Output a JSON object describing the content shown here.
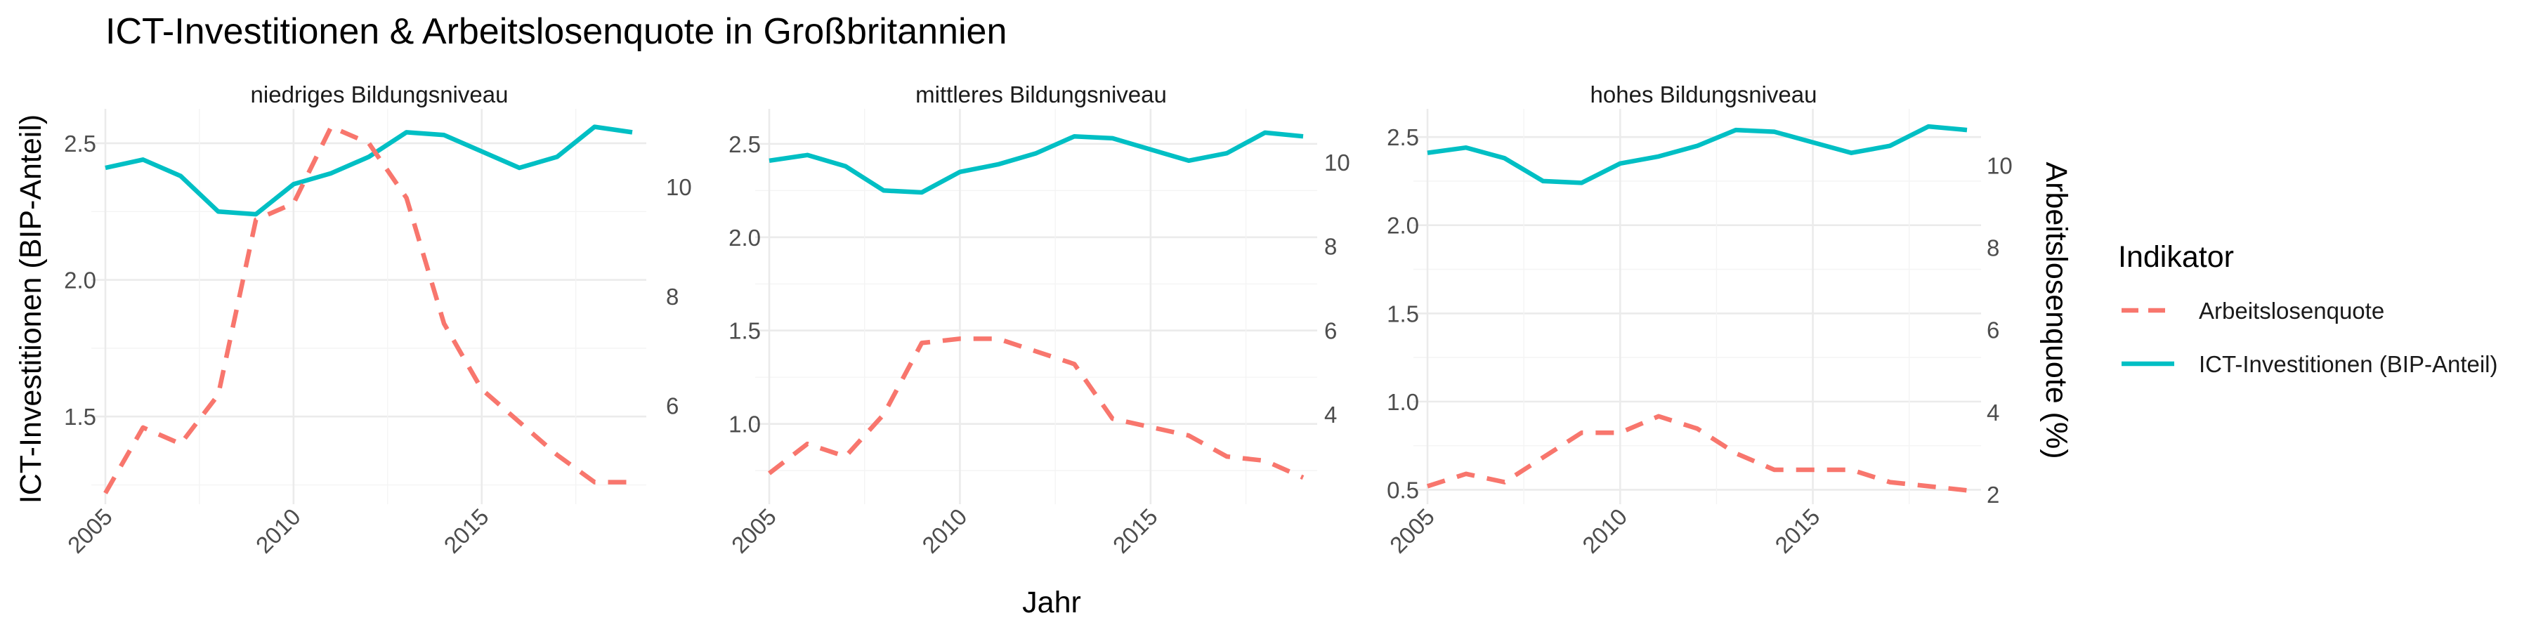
{
  "chart_data": {
    "type": "line",
    "title": "ICT-Investitionen & Arbeitslosenquote in Großbritannien",
    "xlabel": "Jahr",
    "ylabel_left": "ICT-Investitionen (BIP-Anteil)",
    "ylabel_right": "Arbeitslosenquote (%)",
    "legend": {
      "title": "Indikator",
      "placement": "right",
      "entries": [
        {
          "label": "Arbeitslosenquote",
          "color": "#F8766D",
          "style": "dashed"
        },
        {
          "label": "ICT-Investitionen (BIP-Anteil)",
          "color": "#00BFC4",
          "style": "solid"
        }
      ]
    },
    "x_ticks": [
      "2005",
      "2010",
      "2015"
    ],
    "x_range": [
      2005,
      2019
    ],
    "panels": [
      {
        "name": "niedriges Bildungsniveau",
        "left_ylim": [
          1.2,
          2.6
        ],
        "left_ticks": [
          "1.5",
          "2.0",
          "2.5"
        ],
        "right_ylim": [
          4.3,
          11.3
        ],
        "right_ticks": [
          "6",
          "8",
          "10"
        ],
        "x": [
          2005,
          2006,
          2007,
          2008,
          2009,
          2010,
          2011,
          2012,
          2013,
          2014,
          2015,
          2016,
          2017,
          2018,
          2019
        ],
        "ict": [
          2.41,
          2.44,
          2.38,
          2.25,
          2.24,
          2.35,
          2.39,
          2.45,
          2.54,
          2.53,
          2.47,
          2.41,
          2.45,
          2.56,
          2.54
        ],
        "unemployment": [
          4.4,
          5.6,
          5.3,
          6.2,
          9.4,
          9.7,
          11.1,
          10.8,
          9.8,
          7.5,
          6.3,
          5.7,
          5.1,
          4.6,
          4.6
        ]
      },
      {
        "name": "mittleres Bildungsniveau",
        "left_ylim": [
          0.6,
          2.65
        ],
        "left_ticks": [
          "1.0",
          "1.5",
          "2.0",
          "2.5"
        ],
        "right_ylim": [
          2.0,
          11.1
        ],
        "right_ticks": [
          "4",
          "6",
          "8",
          "10"
        ],
        "x": [
          2005,
          2006,
          2007,
          2008,
          2009,
          2010,
          2011,
          2012,
          2013,
          2014,
          2015,
          2016,
          2017,
          2018,
          2019
        ],
        "ict": [
          2.41,
          2.44,
          2.38,
          2.25,
          2.24,
          2.35,
          2.39,
          2.45,
          2.54,
          2.53,
          2.47,
          2.41,
          2.45,
          2.56,
          2.54
        ],
        "unemployment": [
          2.6,
          3.3,
          3.0,
          4.0,
          5.7,
          5.8,
          5.8,
          5.5,
          5.2,
          3.9,
          3.7,
          3.5,
          3.0,
          2.9,
          2.5
        ]
      },
      {
        "name": "hohes Bildungsniveau",
        "left_ylim": [
          0.45,
          2.62
        ],
        "left_ticks": [
          "0.5",
          "1.0",
          "1.5",
          "2.0",
          "2.5"
        ],
        "right_ylim": [
          1.9,
          11.2
        ],
        "right_ticks": [
          "2",
          "4",
          "6",
          "8",
          "10"
        ],
        "x": [
          2005,
          2006,
          2007,
          2008,
          2009,
          2010,
          2011,
          2012,
          2013,
          2014,
          2015,
          2016,
          2017,
          2018,
          2019
        ],
        "ict": [
          2.41,
          2.44,
          2.38,
          2.25,
          2.24,
          2.35,
          2.39,
          2.45,
          2.54,
          2.53,
          2.47,
          2.41,
          2.45,
          2.56,
          2.54
        ],
        "unemployment": [
          2.2,
          2.5,
          2.3,
          2.9,
          3.5,
          3.5,
          3.9,
          3.6,
          3.0,
          2.6,
          2.6,
          2.6,
          2.3,
          2.2,
          2.1
        ]
      }
    ]
  }
}
